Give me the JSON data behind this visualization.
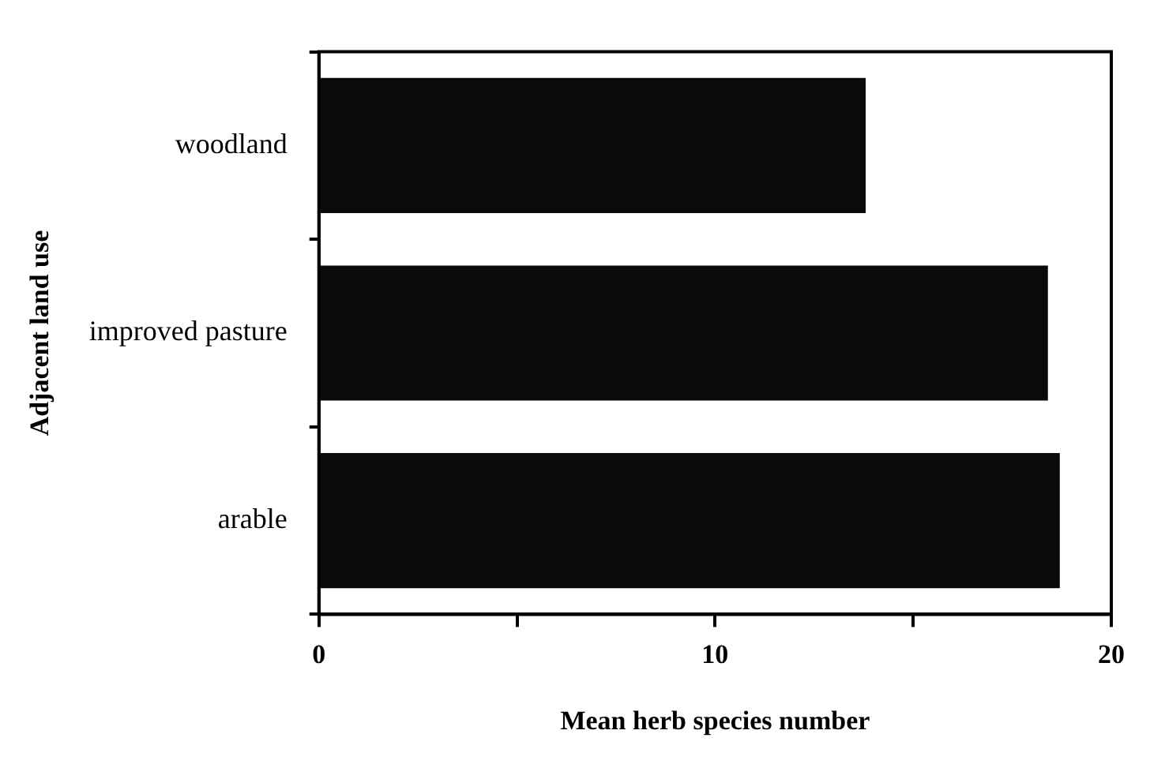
{
  "chart_data": {
    "type": "bar",
    "orientation": "horizontal",
    "categories": [
      "woodland",
      "improved pasture",
      "arable"
    ],
    "values": [
      13.8,
      18.4,
      18.7
    ],
    "color": "#0a0a0a",
    "xlabel": "Mean herb species number",
    "ylabel": "Adjacent land use",
    "xlim": [
      0,
      20
    ],
    "xticks": [
      0,
      {
        "value": 5,
        "label": null
      },
      10,
      {
        "value": 15,
        "label": null
      },
      20
    ],
    "grid": false,
    "legend": false
  }
}
